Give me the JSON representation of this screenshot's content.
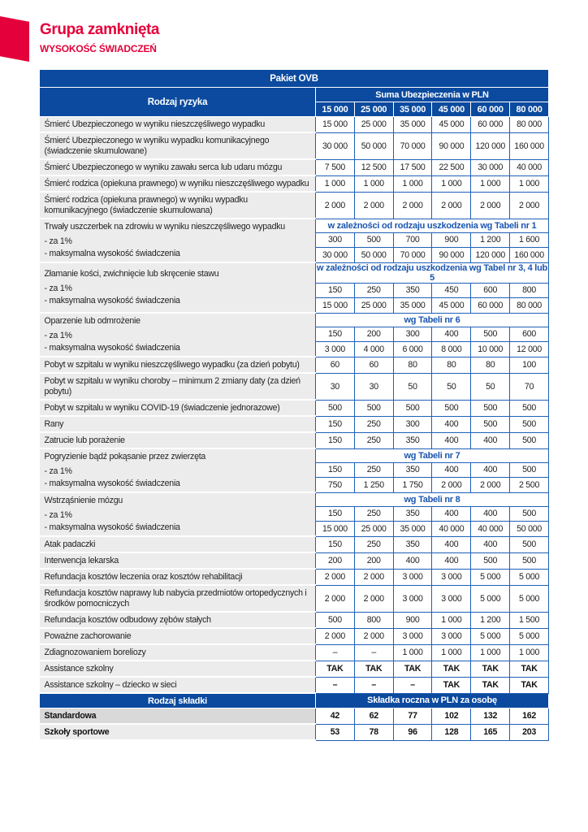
{
  "header": {
    "title": "Grupa zamknięta",
    "subtitle": "WYSOKOŚĆ ŚWIADCZEŃ"
  },
  "table": {
    "package_title": "Pakiet OVB",
    "risk_header": "Rodzaj ryzyka",
    "sum_header": "Suma Ubezpieczenia w PLN",
    "sums": [
      "15 000",
      "25 000",
      "35 000",
      "45 000",
      "60 000",
      "80 000"
    ],
    "rows": [
      {
        "label": "Śmierć Ubezpieczonego w wyniku nieszczęśliwego wypadku",
        "values": [
          "15 000",
          "25 000",
          "35 000",
          "45 000",
          "60 000",
          "80 000"
        ]
      },
      {
        "label": "Śmierć Ubezpieczonego w wyniku wypadku komunikacyjnego (świadczenie skumulowane)",
        "values": [
          "30 000",
          "50 000",
          "70 000",
          "90 000",
          "120 000",
          "160 000"
        ],
        "tall": true
      },
      {
        "label": "Śmierć Ubezpieczonego w wyniku zawału serca lub udaru mózgu",
        "values": [
          "7 500",
          "12 500",
          "17 500",
          "22 500",
          "30 000",
          "40 000"
        ]
      },
      {
        "label": "Śmierć rodzica (opiekuna prawnego) w wyniku nieszczęśliwego wypadku",
        "values": [
          "1 000",
          "1 000",
          "1 000",
          "1 000",
          "1 000",
          "1 000"
        ]
      },
      {
        "label": "Śmierć rodzica (opiekuna prawnego) w wyniku wypadku komunikacyjnego (świadczenie skumulowana)",
        "values": [
          "2 000",
          "2 000",
          "2 000",
          "2 000",
          "2 000",
          "2 000"
        ],
        "tall": true
      },
      {
        "group": true,
        "label": "Trwały uszczerbek na zdrowiu w wyniku nieszczęśliwego wypadku",
        "note": "w zależności od rodzaju uszkodzenia wg Tabeli nr 1",
        "sub1": "- za 1%",
        "sub2": "- maksymalna wysokość świadczenia",
        "values1": [
          "300",
          "500",
          "700",
          "900",
          "1 200",
          "1 600"
        ],
        "values2": [
          "30 000",
          "50 000",
          "70 000",
          "90 000",
          "120 000",
          "160 000"
        ]
      },
      {
        "group": true,
        "label": "Złamanie kości, zwichnięcie lub skręcenie stawu",
        "note": "w zależności od rodzaju uszkodzenia wg Tabel nr 3, 4 lub 5",
        "sub1": "- za 1%",
        "sub2": "- maksymalna wysokość świadczenia",
        "values1": [
          "150",
          "250",
          "350",
          "450",
          "600",
          "800"
        ],
        "values2": [
          "15 000",
          "25 000",
          "35 000",
          "45 000",
          "60 000",
          "80 000"
        ]
      },
      {
        "group": true,
        "label": "Oparzenie lub odmrożenie",
        "note": "wg Tabeli nr 6",
        "sub1": "- za 1%",
        "sub2": "- maksymalna wysokość świadczenia",
        "values1": [
          "150",
          "200",
          "300",
          "400",
          "500",
          "600"
        ],
        "values2": [
          "3 000",
          "4 000",
          "6 000",
          "8 000",
          "10 000",
          "12 000"
        ]
      },
      {
        "label": "Pobyt w szpitalu w wyniku nieszczęśliwego wypadku (za dzień pobytu)",
        "values": [
          "60",
          "60",
          "80",
          "80",
          "80",
          "100"
        ]
      },
      {
        "label": "Pobyt w szpitalu w wyniku choroby – minimum 2 zmiany daty (za dzień pobytu)",
        "values": [
          "30",
          "30",
          "50",
          "50",
          "50",
          "70"
        ],
        "tall": true
      },
      {
        "label": "Pobyt w szpitalu w wyniku COVID-19 (świadczenie jednorazowe)",
        "values": [
          "500",
          "500",
          "500",
          "500",
          "500",
          "500"
        ]
      },
      {
        "label": "Rany",
        "values": [
          "150",
          "250",
          "300",
          "400",
          "500",
          "500"
        ]
      },
      {
        "label": "Zatrucie lub porażenie",
        "values": [
          "150",
          "250",
          "350",
          "400",
          "400",
          "500"
        ]
      },
      {
        "group": true,
        "label": "Pogryzienie bądź pokąsanie przez zwierzęta",
        "note": "wg Tabeli nr 7",
        "sub1": "- za 1%",
        "sub2": "- maksymalna wysokość świadczenia",
        "values1": [
          "150",
          "250",
          "350",
          "400",
          "400",
          "500"
        ],
        "values2": [
          "750",
          "1 250",
          "1 750",
          "2 000",
          "2 000",
          "2 500"
        ]
      },
      {
        "group": true,
        "label": "Wstrząśnienie mózgu",
        "note": "wg Tabeli nr 8",
        "sub1": "- za 1%",
        "sub2": "- maksymalna wysokość świadczenia",
        "values1": [
          "150",
          "250",
          "350",
          "400",
          "400",
          "500"
        ],
        "values2": [
          "15 000",
          "25 000",
          "35 000",
          "40 000",
          "40 000",
          "50 000"
        ]
      },
      {
        "label": "Atak padaczki",
        "values": [
          "150",
          "250",
          "350",
          "400",
          "400",
          "500"
        ]
      },
      {
        "label": "Interwencja lekarska",
        "values": [
          "200",
          "200",
          "400",
          "400",
          "500",
          "500"
        ]
      },
      {
        "label": "Refundacja kosztów leczenia oraz kosztów rehabilitacji",
        "values": [
          "2 000",
          "2 000",
          "3 000",
          "3 000",
          "5 000",
          "5 000"
        ]
      },
      {
        "label": "Refundacja kosztów naprawy lub nabycia przedmiotów ortopedycznych i środków pomocniczych",
        "values": [
          "2 000",
          "2 000",
          "3 000",
          "3 000",
          "5 000",
          "5 000"
        ],
        "tall": true
      },
      {
        "label": "Refundacja kosztów odbudowy zębów stałych",
        "values": [
          "500",
          "800",
          "900",
          "1 000",
          "1 200",
          "1 500"
        ]
      },
      {
        "label": "Poważne zachorowanie",
        "values": [
          "2 000",
          "2 000",
          "3 000",
          "3 000",
          "5 000",
          "5 000"
        ]
      },
      {
        "label": "Zdiagnozowaniem boreliozy",
        "values": [
          "–",
          "–",
          "1 000",
          "1 000",
          "1 000",
          "1 000"
        ]
      },
      {
        "label": "Assistance szkolny",
        "values": [
          "TAK",
          "TAK",
          "TAK",
          "TAK",
          "TAK",
          "TAK"
        ],
        "bold_values": true
      },
      {
        "label": "Assistance szkolny – dziecko w sieci",
        "values": [
          "–",
          "–",
          "–",
          "TAK",
          "TAK",
          "TAK"
        ],
        "bold_values": true
      }
    ],
    "premium_header": "Rodzaj składki",
    "premium_sub_header": "Składka roczna w PLN za osobę",
    "premiums": [
      {
        "label": "Standardowa",
        "values": [
          "42",
          "62",
          "77",
          "102",
          "132",
          "162"
        ]
      },
      {
        "label": "Szkoły sportowe",
        "values": [
          "53",
          "78",
          "96",
          "128",
          "165",
          "203"
        ]
      }
    ]
  },
  "colors": {
    "accent": "#e4003a",
    "header_blue": "#0b4a9e",
    "label_bg": "#ececec"
  }
}
